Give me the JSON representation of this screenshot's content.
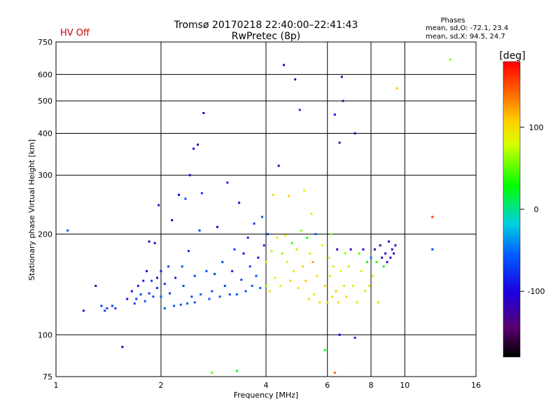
{
  "chart_data": {
    "type": "scatter",
    "title": "Tromsø 20170218 22:40:00–22:41:43",
    "subtitle": "RwPretec (8p)",
    "status": "HV Off",
    "phases_title": "Phases",
    "phases_line1": "mean, sd,O: -72.1, 23.4",
    "phases_line2": "mean, sd,X:  94.5, 24.7",
    "xlabel": "Frequency [MHz]",
    "ylabel": "Stationary phase Virtual Height [km]",
    "x_scale": "log",
    "y_scale": "log",
    "xlim": [
      1,
      16
    ],
    "ylim": [
      75,
      750
    ],
    "x_ticks": [
      {
        "value": 1,
        "label": "1"
      },
      {
        "value": 2,
        "label": "2"
      },
      {
        "value": 4,
        "label": "4"
      },
      {
        "value": 6,
        "label": "6"
      },
      {
        "value": 8,
        "label": "8"
      },
      {
        "value": 10,
        "label": "10"
      },
      {
        "value": 16,
        "label": "16"
      }
    ],
    "y_ticks": [
      {
        "value": 75,
        "label": "75"
      },
      {
        "value": 100,
        "label": "100"
      },
      {
        "value": 200,
        "label": "200"
      },
      {
        "value": 300,
        "label": "300"
      },
      {
        "value": 400,
        "label": "400"
      },
      {
        "value": 500,
        "label": "500"
      },
      {
        "value": 600,
        "label": "600"
      },
      {
        "value": 750,
        "label": "750"
      }
    ],
    "grid": true,
    "colorbar": {
      "label": "[deg]",
      "range": [
        -180,
        180
      ],
      "ticks": [
        {
          "value": 100,
          "label": "100"
        },
        {
          "value": 0,
          "label": "0"
        },
        {
          "value": -100,
          "label": "-100"
        }
      ]
    },
    "points": [
      [
        1.08,
        205,
        -60
      ],
      [
        1.2,
        118,
        -90
      ],
      [
        1.3,
        140,
        -110
      ],
      [
        1.35,
        122,
        -75
      ],
      [
        1.38,
        118,
        -70
      ],
      [
        1.4,
        120,
        -68
      ],
      [
        1.45,
        122,
        -70
      ],
      [
        1.48,
        120,
        -72
      ],
      [
        1.55,
        92,
        -115
      ],
      [
        1.6,
        128,
        -90
      ],
      [
        1.65,
        135,
        -95
      ],
      [
        1.68,
        124,
        -70
      ],
      [
        1.7,
        128,
        -72
      ],
      [
        1.72,
        140,
        -85
      ],
      [
        1.75,
        132,
        -68
      ],
      [
        1.78,
        145,
        -92
      ],
      [
        1.8,
        126,
        -65
      ],
      [
        1.82,
        155,
        -100
      ],
      [
        1.85,
        133,
        -70
      ],
      [
        1.85,
        190,
        -105
      ],
      [
        1.88,
        145,
        -75
      ],
      [
        1.9,
        130,
        -62
      ],
      [
        1.92,
        188,
        -100
      ],
      [
        1.95,
        138,
        -80
      ],
      [
        1.95,
        148,
        -110
      ],
      [
        1.97,
        244,
        -115
      ],
      [
        2.0,
        130,
        -60
      ],
      [
        2.0,
        155,
        -90
      ],
      [
        2.05,
        120,
        -60
      ],
      [
        2.05,
        142,
        -72
      ],
      [
        2.1,
        160,
        -68
      ],
      [
        2.12,
        133,
        -75
      ],
      [
        2.15,
        220,
        -110
      ],
      [
        2.18,
        122,
        -62
      ],
      [
        2.2,
        148,
        -88
      ],
      [
        2.25,
        262,
        -100
      ],
      [
        2.28,
        123,
        -60
      ],
      [
        2.3,
        160,
        -60
      ],
      [
        2.32,
        140,
        -70
      ],
      [
        2.35,
        255,
        -65
      ],
      [
        2.38,
        124,
        -62
      ],
      [
        2.4,
        178,
        -80
      ],
      [
        2.42,
        300,
        -110
      ],
      [
        2.45,
        130,
        -65
      ],
      [
        2.48,
        360,
        -95
      ],
      [
        2.5,
        150,
        -70
      ],
      [
        2.5,
        125,
        -60
      ],
      [
        2.55,
        370,
        -110
      ],
      [
        2.58,
        205,
        -75
      ],
      [
        2.6,
        132,
        -62
      ],
      [
        2.62,
        265,
        -80
      ],
      [
        2.65,
        460,
        -100
      ],
      [
        2.7,
        155,
        -65
      ],
      [
        2.75,
        128,
        -62
      ],
      [
        2.8,
        135,
        -65
      ],
      [
        2.85,
        152,
        -72
      ],
      [
        2.9,
        210,
        -110
      ],
      [
        2.95,
        130,
        -60
      ],
      [
        3.0,
        165,
        -70
      ],
      [
        3.05,
        140,
        -65
      ],
      [
        3.1,
        285,
        -85
      ],
      [
        3.15,
        132,
        -62
      ],
      [
        3.2,
        155,
        -90
      ],
      [
        3.25,
        180,
        -70
      ],
      [
        3.3,
        132,
        -60
      ],
      [
        3.35,
        248,
        -110
      ],
      [
        3.4,
        146,
        -68
      ],
      [
        3.45,
        175,
        -95
      ],
      [
        3.5,
        135,
        -62
      ],
      [
        3.55,
        195,
        -85
      ],
      [
        3.6,
        160,
        -70
      ],
      [
        3.65,
        140,
        -60
      ],
      [
        3.7,
        215,
        -75
      ],
      [
        3.75,
        150,
        -65
      ],
      [
        3.8,
        170,
        -110
      ],
      [
        3.85,
        138,
        -55
      ],
      [
        3.9,
        225,
        -60
      ],
      [
        3.95,
        185,
        -80
      ],
      [
        4.0,
        140,
        60
      ],
      [
        4.0,
        165,
        80
      ],
      [
        4.05,
        200,
        -75
      ],
      [
        4.1,
        135,
        90
      ],
      [
        4.15,
        178,
        70
      ],
      [
        4.2,
        262,
        100
      ],
      [
        4.25,
        148,
        85
      ],
      [
        4.3,
        195,
        95
      ],
      [
        4.35,
        320,
        -100
      ],
      [
        4.4,
        140,
        80
      ],
      [
        4.45,
        175,
        60
      ],
      [
        4.5,
        640,
        -100
      ],
      [
        4.55,
        198,
        90
      ],
      [
        4.6,
        165,
        75
      ],
      [
        4.65,
        260,
        110
      ],
      [
        4.7,
        145,
        100
      ],
      [
        4.75,
        188,
        40
      ],
      [
        4.8,
        155,
        85
      ],
      [
        4.85,
        580,
        -110
      ],
      [
        4.9,
        180,
        70
      ],
      [
        4.95,
        138,
        95
      ],
      [
        5.0,
        470,
        -80
      ],
      [
        5.05,
        205,
        60
      ],
      [
        5.1,
        160,
        100
      ],
      [
        5.15,
        270,
        80
      ],
      [
        5.2,
        145,
        110
      ],
      [
        5.25,
        195,
        30
      ],
      [
        5.3,
        128,
        100
      ],
      [
        5.35,
        175,
        90
      ],
      [
        5.4,
        230,
        100
      ],
      [
        5.45,
        165,
        120
      ],
      [
        5.5,
        132,
        95
      ],
      [
        5.55,
        200,
        -60
      ],
      [
        5.6,
        150,
        100
      ],
      [
        5.7,
        125,
        100
      ],
      [
        5.8,
        185,
        80
      ],
      [
        5.9,
        140,
        110
      ],
      [
        6.0,
        125,
        105
      ],
      [
        6.05,
        170,
        70
      ],
      [
        6.1,
        150,
        95
      ],
      [
        6.15,
        200,
        60
      ],
      [
        6.2,
        130,
        100
      ],
      [
        6.25,
        160,
        90
      ],
      [
        6.3,
        455,
        -100
      ],
      [
        6.35,
        135,
        110
      ],
      [
        6.4,
        180,
        -110
      ],
      [
        6.45,
        125,
        95
      ],
      [
        6.5,
        375,
        -120
      ],
      [
        6.55,
        155,
        80
      ],
      [
        6.6,
        590,
        -110
      ],
      [
        6.65,
        500,
        -130
      ],
      [
        6.7,
        140,
        100
      ],
      [
        6.75,
        175,
        60
      ],
      [
        6.8,
        130,
        105
      ],
      [
        6.9,
        160,
        70
      ],
      [
        7.0,
        180,
        -110
      ],
      [
        7.1,
        140,
        90
      ],
      [
        7.2,
        400,
        -120
      ],
      [
        7.3,
        125,
        100
      ],
      [
        7.4,
        175,
        50
      ],
      [
        7.5,
        155,
        85
      ],
      [
        7.6,
        180,
        -100
      ],
      [
        7.7,
        135,
        95
      ],
      [
        7.8,
        165,
        20
      ],
      [
        7.9,
        140,
        100
      ],
      [
        8.0,
        170,
        -50
      ],
      [
        8.1,
        150,
        90
      ],
      [
        8.2,
        180,
        -110
      ],
      [
        8.3,
        165,
        40
      ],
      [
        8.4,
        125,
        100
      ],
      [
        8.5,
        185,
        -120
      ],
      [
        8.6,
        170,
        -110
      ],
      [
        8.7,
        160,
        30
      ],
      [
        8.8,
        175,
        -100
      ],
      [
        8.9,
        165,
        -90
      ],
      [
        9.0,
        190,
        -120
      ],
      [
        9.1,
        170,
        -100
      ],
      [
        9.2,
        180,
        -110
      ],
      [
        9.3,
        175,
        -95
      ],
      [
        9.4,
        185,
        -115
      ],
      [
        9.5,
        545,
        110
      ],
      [
        12.0,
        225,
        160
      ],
      [
        12.0,
        180,
        -70
      ],
      [
        13.5,
        665,
        60
      ],
      [
        3.3,
        78,
        20
      ],
      [
        2.8,
        77,
        50
      ],
      [
        6.3,
        77,
        140
      ],
      [
        5.9,
        90,
        30
      ],
      [
        6.5,
        100,
        -100
      ],
      [
        7.2,
        98,
        -80
      ]
    ]
  }
}
